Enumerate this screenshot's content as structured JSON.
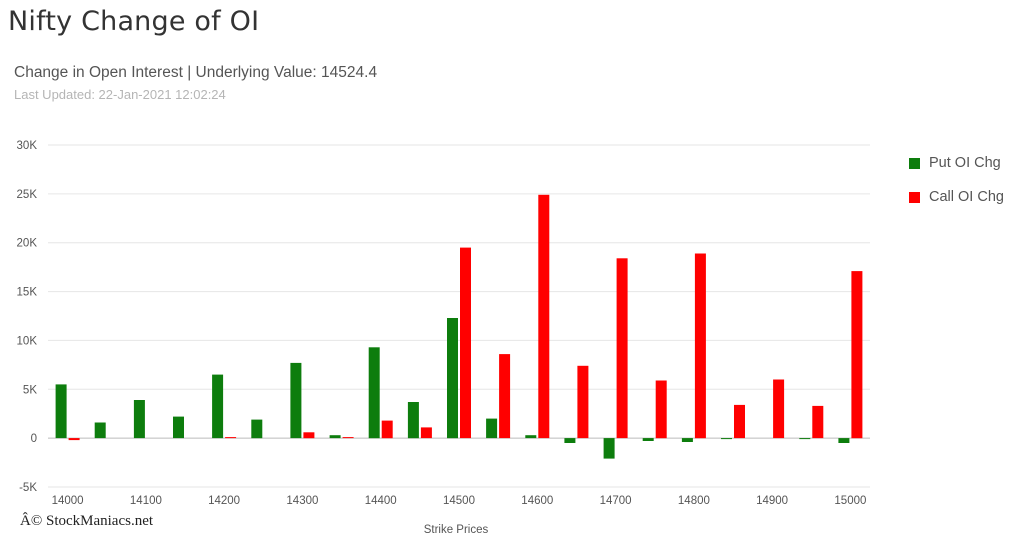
{
  "header": {
    "title": "Nifty Change of OI",
    "subtitle": "Change in Open Interest | Underlying Value: 14524.4",
    "last_updated": "Last Updated: 22-Jan-2021 12:02:24"
  },
  "watermark": "Â© StockManiacs.net",
  "colors": {
    "put": "#0d7d0d",
    "call": "#ff0000",
    "grid": "#e6e6e6",
    "zero_line": "#bbbbbb"
  },
  "chart_data": {
    "type": "bar",
    "title": "Nifty Change of OI",
    "subtitle": "Change in Open Interest | Underlying Value: 14524.4",
    "xlabel": "Strike Prices",
    "ylabel": "",
    "ylim": [
      -5000,
      30000
    ],
    "yticks": [
      -5000,
      0,
      5000,
      10000,
      15000,
      20000,
      25000,
      30000
    ],
    "ytick_labels": [
      "-5K",
      "0",
      "5K",
      "10K",
      "15K",
      "20K",
      "25K",
      "30K"
    ],
    "grid": true,
    "legend_position": "right",
    "categories": [
      "14000",
      "14050",
      "14100",
      "14150",
      "14200",
      "14250",
      "14300",
      "14350",
      "14400",
      "14450",
      "14500",
      "14550",
      "14600",
      "14650",
      "14700",
      "14750",
      "14800",
      "14850",
      "14900",
      "14950",
      "15000"
    ],
    "xtick_labels": [
      "14000",
      "",
      "14100",
      "",
      "14200",
      "",
      "14300",
      "",
      "14400",
      "",
      "14500",
      "",
      "14600",
      "",
      "14700",
      "",
      "14800",
      "",
      "14900",
      "",
      "15000"
    ],
    "series": [
      {
        "name": "Put OI Chg",
        "values": [
          5500,
          1600,
          3900,
          2200,
          6500,
          1900,
          7700,
          300,
          9300,
          3700,
          12300,
          2000,
          300,
          -500,
          -2100,
          -300,
          -400,
          -100,
          0,
          -100,
          -500
        ]
      },
      {
        "name": "Call OI Chg",
        "values": [
          -200,
          0,
          0,
          0,
          100,
          0,
          600,
          50,
          1800,
          1100,
          19500,
          8600,
          24900,
          7400,
          18400,
          5900,
          18900,
          3400,
          6000,
          3300,
          17100
        ]
      }
    ]
  }
}
